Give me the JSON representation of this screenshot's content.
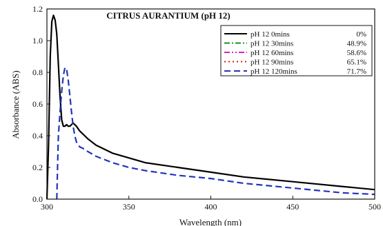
{
  "chart_data": {
    "type": "line",
    "title": "CITRUS AURANTIUM (pH 12)",
    "xlabel": "Wavelength (nm)",
    "ylabel": "Absorbance (ABS)",
    "xlim": [
      300,
      500
    ],
    "ylim": [
      0,
      1.2
    ],
    "xticks": [
      300,
      350,
      400,
      450,
      500
    ],
    "yticks": [
      0.0,
      0.2,
      0.4,
      0.6,
      0.8,
      1.0,
      1.2
    ],
    "xtick_labels": [
      "300",
      "350",
      "400",
      "450",
      "500"
    ],
    "ytick_labels": [
      "0.0",
      "0.2",
      "0.4",
      "0.6",
      "0.8",
      "1.0",
      "1.2"
    ],
    "grid": false,
    "legend_position": "top-right",
    "series": [
      {
        "name": "pH 12 0mins",
        "degradation": "0%",
        "color": "#000000",
        "style": "solid",
        "x": [
          300,
          301,
          302,
          303,
          304,
          305,
          306,
          307,
          308,
          309,
          310,
          311,
          312,
          313,
          314,
          315,
          316,
          317,
          318,
          320,
          325,
          330,
          340,
          350,
          360,
          380,
          400,
          420,
          450,
          480,
          500
        ],
        "y": [
          0.0,
          0.35,
          0.9,
          1.12,
          1.16,
          1.13,
          1.04,
          0.85,
          0.65,
          0.5,
          0.46,
          0.46,
          0.47,
          0.46,
          0.46,
          0.47,
          0.48,
          0.47,
          0.46,
          0.43,
          0.38,
          0.34,
          0.29,
          0.26,
          0.23,
          0.2,
          0.17,
          0.14,
          0.11,
          0.08,
          0.06
        ]
      },
      {
        "name": "pH 12 30mins",
        "degradation": "48.9%",
        "color": "#1a8f1a",
        "style": "dash-dot",
        "x": [],
        "y": []
      },
      {
        "name": "pH 12 60mins",
        "degradation": "58.6%",
        "color": "#cc22cc",
        "style": "dash-dot-dot",
        "x": [],
        "y": []
      },
      {
        "name": "pH 12 90mins",
        "degradation": "65.1%",
        "color": "#cc2222",
        "style": "dotted",
        "x": [],
        "y": []
      },
      {
        "name": "pH 12 120mins",
        "degradation": "71.7%",
        "color": "#2233bb",
        "style": "dashed",
        "x": [
          306,
          306.5,
          307,
          308,
          309,
          310,
          311,
          312,
          313,
          314,
          315,
          316,
          317,
          318,
          320,
          322,
          325,
          330,
          340,
          350,
          360,
          380,
          400,
          420,
          450,
          480,
          500
        ],
        "y": [
          0.0,
          0.2,
          0.4,
          0.55,
          0.68,
          0.78,
          0.83,
          0.82,
          0.75,
          0.65,
          0.55,
          0.46,
          0.4,
          0.36,
          0.33,
          0.32,
          0.3,
          0.27,
          0.23,
          0.2,
          0.18,
          0.15,
          0.13,
          0.1,
          0.07,
          0.04,
          0.03
        ]
      }
    ]
  }
}
